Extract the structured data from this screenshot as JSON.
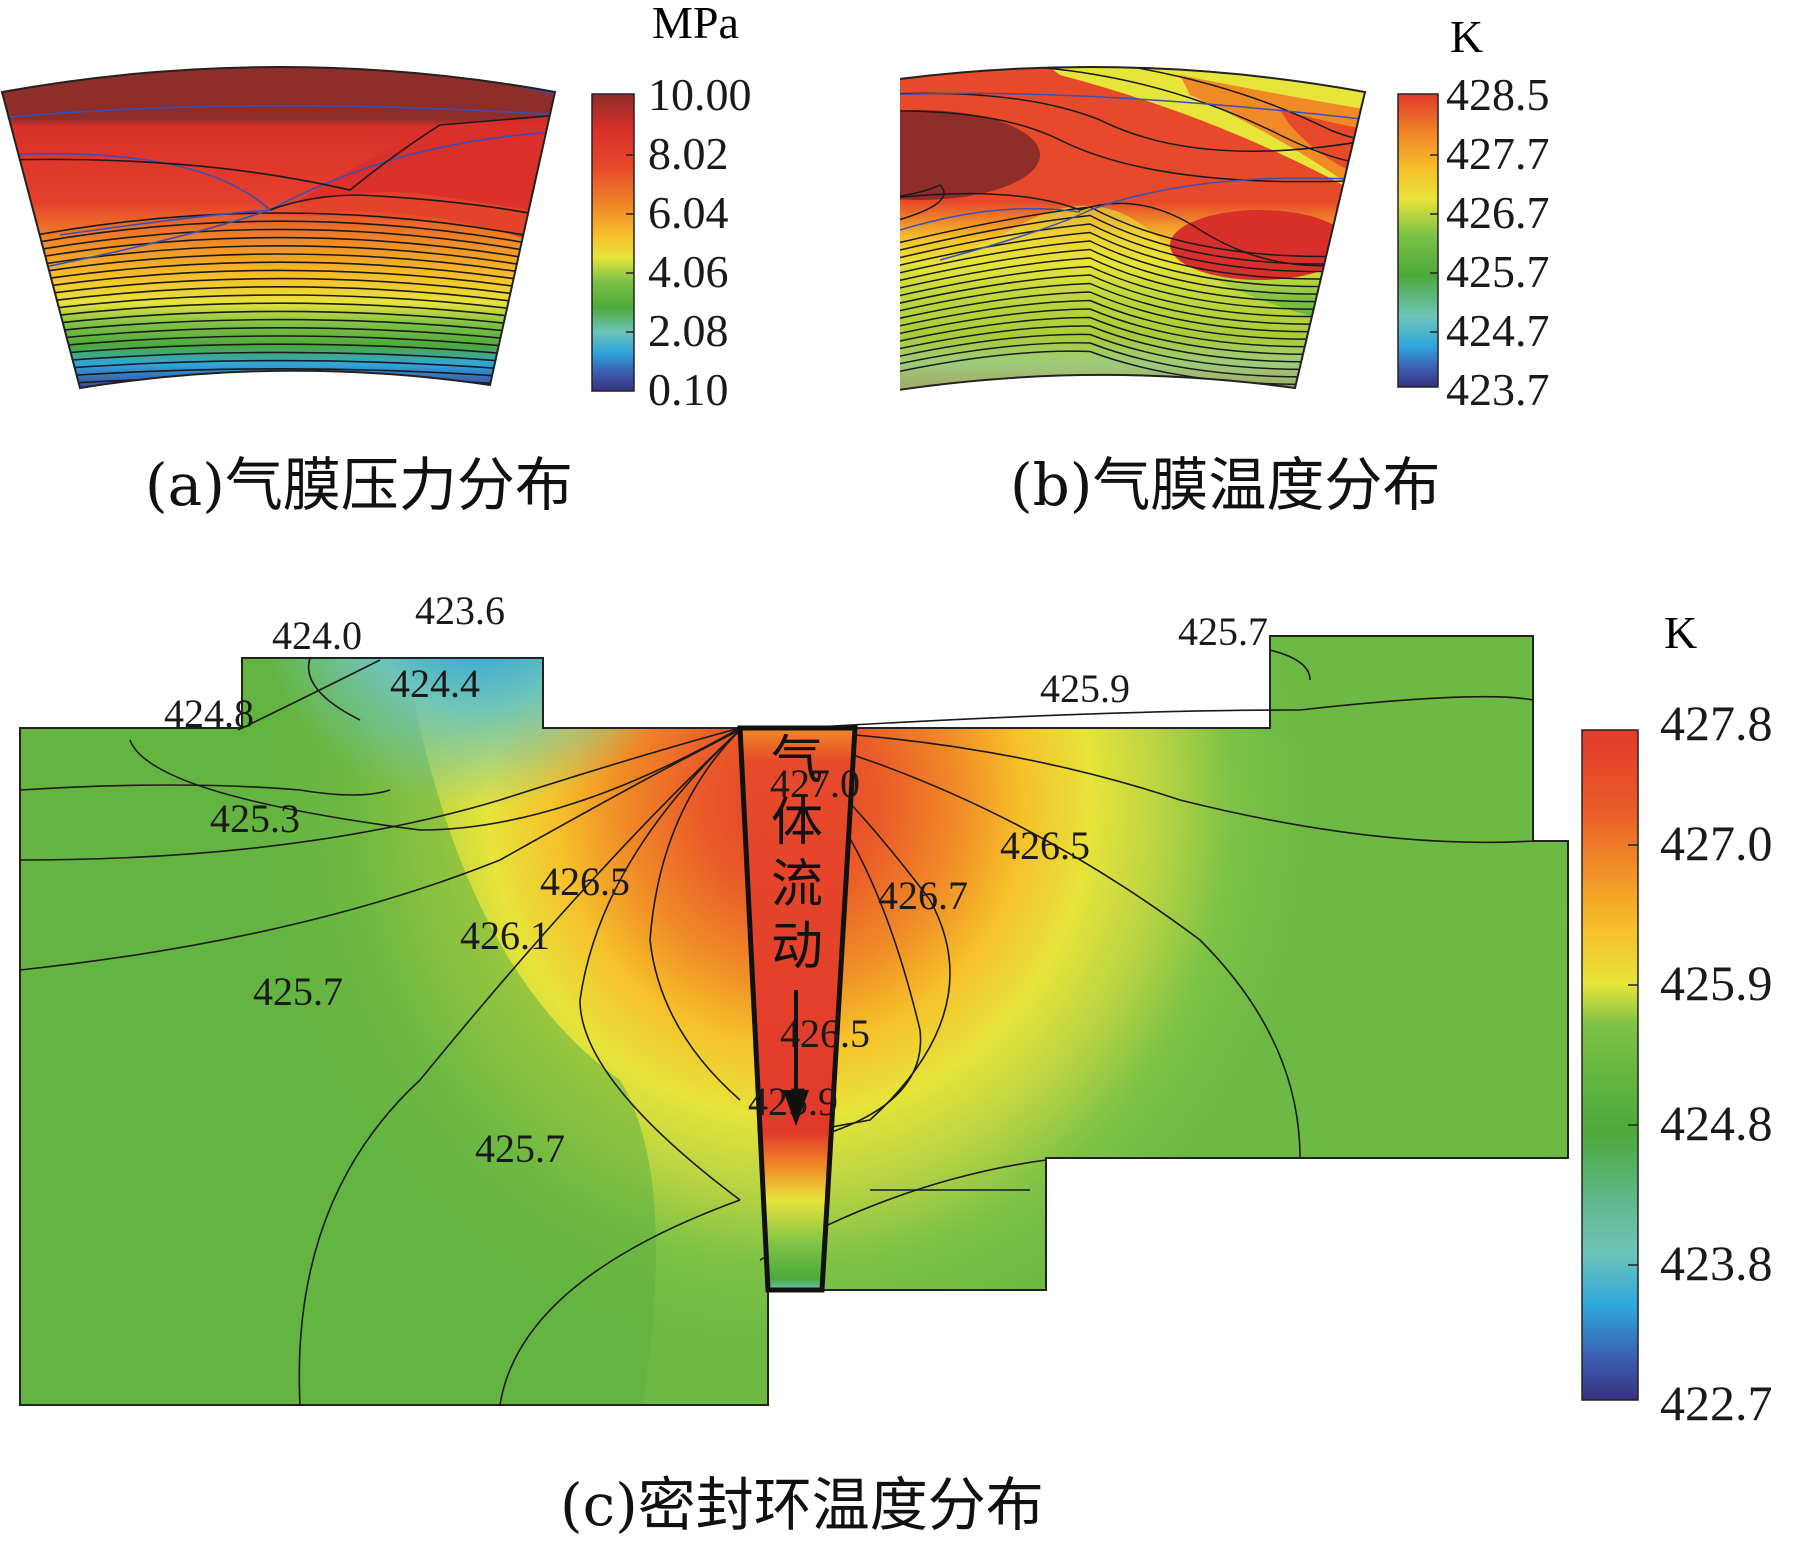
{
  "palette": {
    "stops": [
      "#36337e",
      "#3c5bb0",
      "#2fa6dc",
      "#6ec4b9",
      "#4ca93a",
      "#7dc246",
      "#e7e43a",
      "#f6c12a",
      "#f08a27",
      "#e64a2b",
      "#d92f2a",
      "#8e2d2a"
    ]
  },
  "panels": {
    "a": {
      "caption": "(a)气膜压力分布",
      "unit": "MPa",
      "legend_ticks": [
        "10.00",
        "8.02",
        "6.04",
        "4.06",
        "2.08",
        "0.10"
      ]
    },
    "b": {
      "caption": "(b)气膜温度分布",
      "unit": "K",
      "legend_ticks": [
        "428.5",
        "427.7",
        "426.7",
        "425.7",
        "424.7",
        "423.7"
      ]
    },
    "c": {
      "caption": "(c)密封环温度分布",
      "unit": "K",
      "legend_ticks": [
        "427.8",
        "427.0",
        "425.9",
        "424.8",
        "423.8",
        "422.7"
      ],
      "flow_label": [
        "气",
        "体",
        "流",
        "动"
      ],
      "contour_labels": [
        "423.6",
        "424.0",
        "424.4",
        "424.8",
        "425.3",
        "425.7",
        "426.1",
        "426.5",
        "427.0",
        "426.5",
        "426.7",
        "426.5",
        "425.7",
        "425.9",
        "425.9",
        "425.7",
        "426.5"
      ]
    }
  },
  "chart_data": [
    {
      "type": "heatmap",
      "panel": "a",
      "title": "(a)气膜压力分布",
      "colorbar_label": "MPa",
      "colorbar_ticks": [
        10.0,
        8.02,
        6.04,
        4.06,
        2.08,
        0.1
      ],
      "range": [
        0.1,
        10.0
      ]
    },
    {
      "type": "heatmap",
      "panel": "b",
      "title": "(b)气膜温度分布",
      "colorbar_label": "K",
      "colorbar_ticks": [
        428.5,
        427.7,
        426.7,
        425.7,
        424.7,
        423.7
      ],
      "range": [
        423.7,
        428.5
      ]
    },
    {
      "type": "heatmap",
      "panel": "c",
      "title": "(c)密封环温度分布",
      "colorbar_label": "K",
      "colorbar_ticks": [
        427.8,
        427.0,
        425.9,
        424.8,
        423.8,
        422.7
      ],
      "range": [
        422.7,
        427.8
      ],
      "contour_levels": [
        423.6,
        424.0,
        424.4,
        424.8,
        425.3,
        425.7,
        426.1,
        426.5,
        426.7,
        427.0,
        425.9
      ]
    }
  ]
}
